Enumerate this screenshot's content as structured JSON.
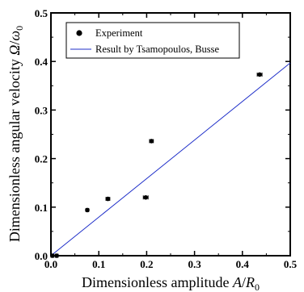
{
  "chart_data": {
    "type": "scatter",
    "xlabel": "Dimensionless amplitude A/R₀",
    "ylabel": "Dimensionless angular velocity Ω/ω₀",
    "xlim": [
      0,
      0.5
    ],
    "ylim": [
      0,
      0.5
    ],
    "x_ticks": [
      "0.0",
      "0.1",
      "0.2",
      "0.3",
      "0.4",
      "0.5"
    ],
    "y_ticks": [
      "0.0",
      "0.1",
      "0.2",
      "0.3",
      "0.4",
      "0.5"
    ],
    "grid": false,
    "legend": {
      "position": "top-left",
      "entries": [
        "Experiment",
        "Result by Tsamopoulos, Busse"
      ]
    },
    "series": [
      {
        "name": "Experiment",
        "kind": "points",
        "color": "#000000",
        "points": [
          {
            "x": 0.003,
            "y": 0.0,
            "xerr": 0.003
          },
          {
            "x": 0.012,
            "y": 0.0,
            "xerr": 0.003
          },
          {
            "x": 0.076,
            "y": 0.094,
            "xerr": 0.003
          },
          {
            "x": 0.119,
            "y": 0.117,
            "xerr": 0.004
          },
          {
            "x": 0.198,
            "y": 0.12,
            "xerr": 0.005
          },
          {
            "x": 0.21,
            "y": 0.236,
            "xerr": 0.004
          },
          {
            "x": 0.436,
            "y": 0.373,
            "xerr": 0.005
          }
        ]
      },
      {
        "name": "Result by Tsamopoulos, Busse",
        "kind": "line",
        "color": "#1f2fc9",
        "x": [
          0.0,
          0.5
        ],
        "y": [
          0.0,
          0.397
        ]
      }
    ]
  }
}
